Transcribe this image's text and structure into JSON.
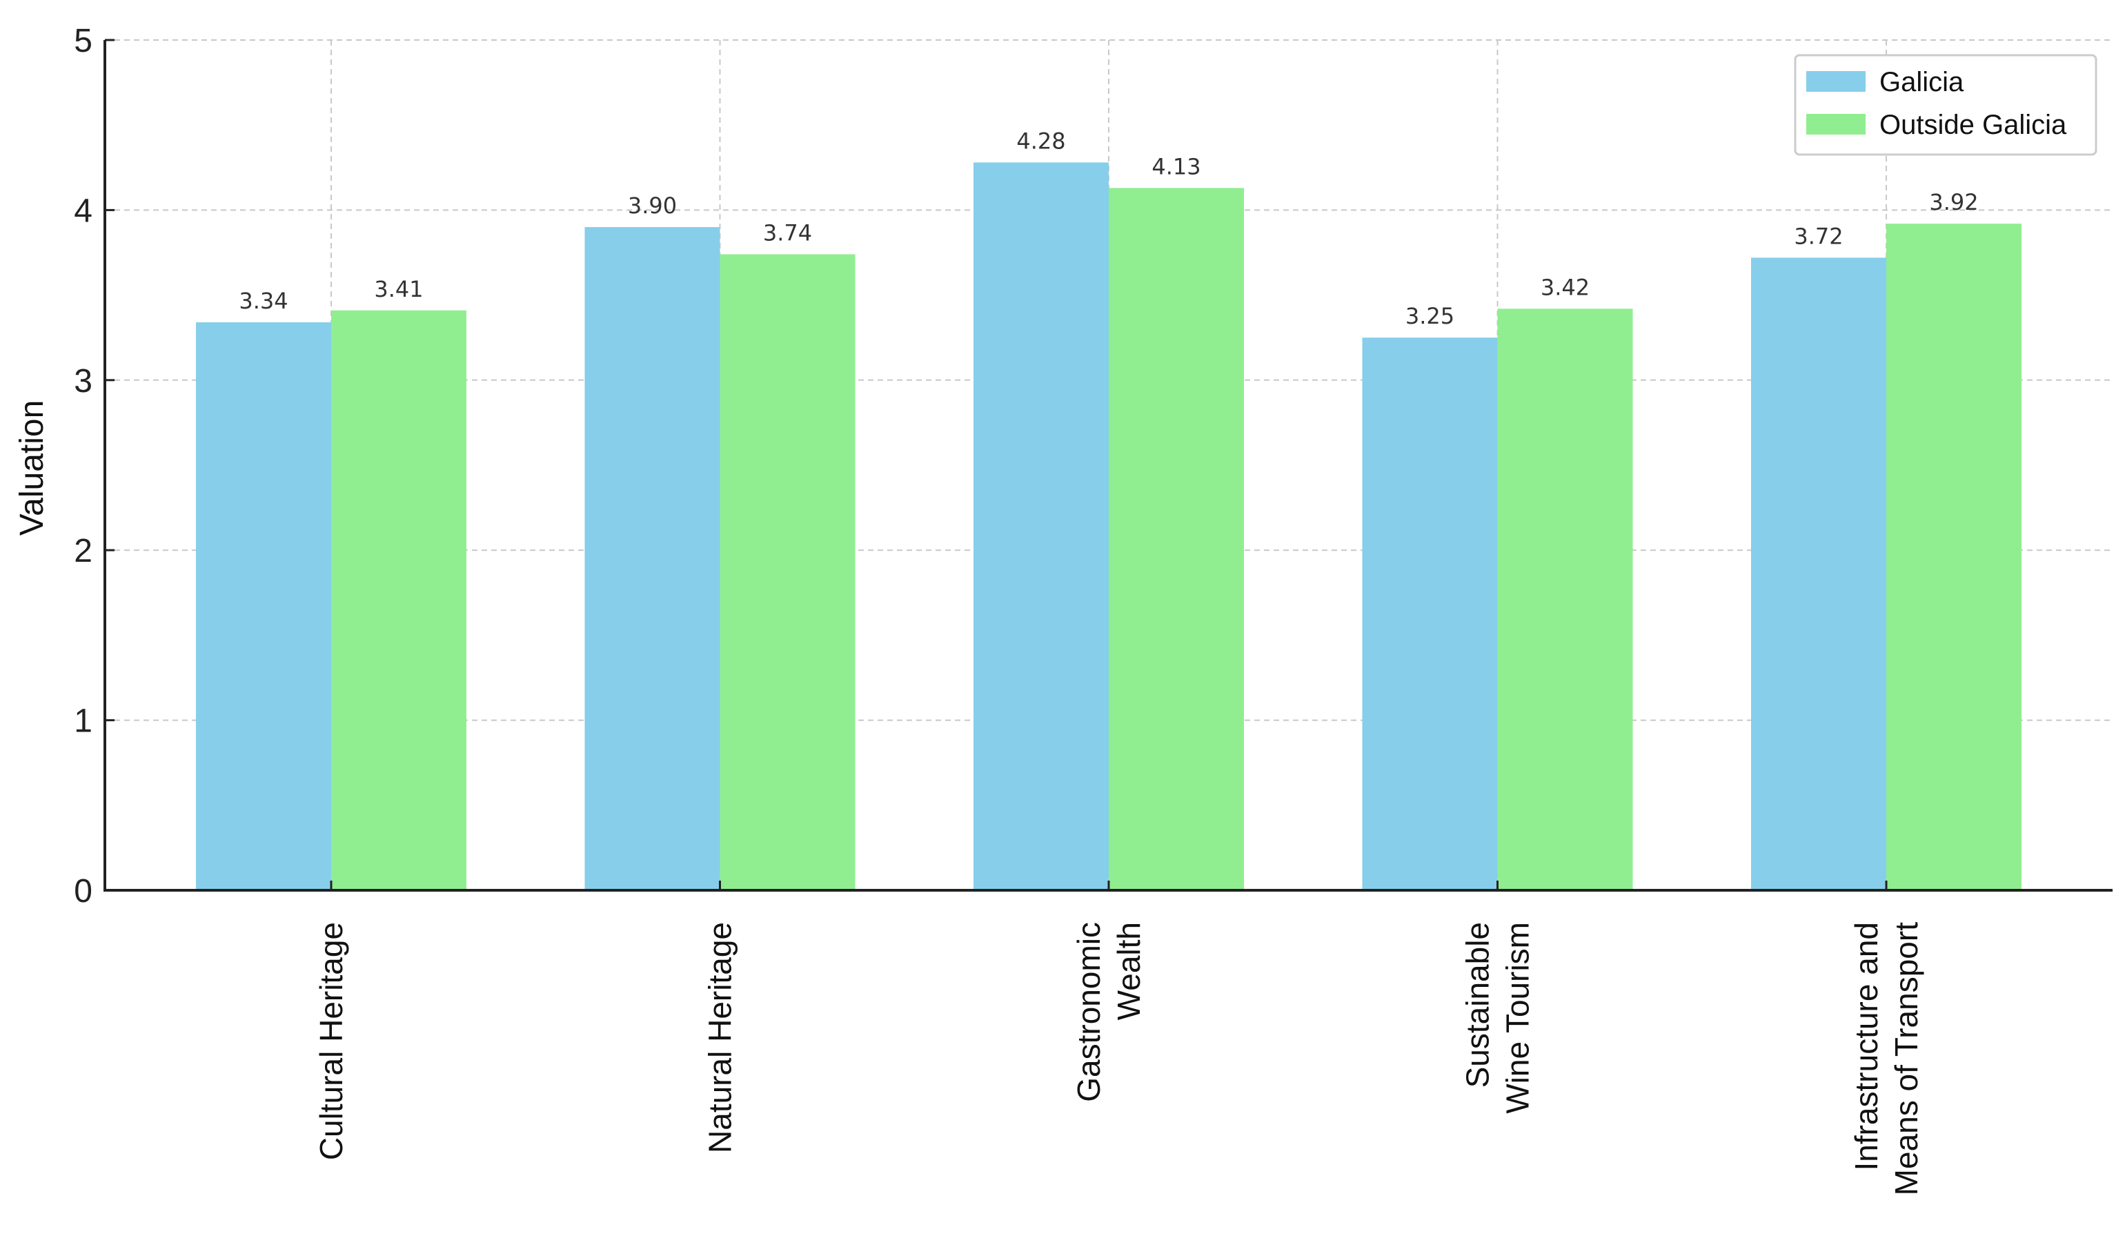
{
  "chart_data": {
    "type": "bar",
    "title": "",
    "xlabel": "",
    "ylabel": "Valuation",
    "ylim": [
      0,
      5
    ],
    "yticks": [
      0,
      1,
      2,
      3,
      4,
      5
    ],
    "grid": true,
    "legend_position": "top-right",
    "categories": [
      [
        "Cultural Heritage"
      ],
      [
        "Natural Heritage"
      ],
      [
        "Gastronomic",
        "Wealth"
      ],
      [
        "Sustainable",
        "Wine Tourism"
      ],
      [
        "Infrastructure and",
        "Means of Transport"
      ]
    ],
    "series": [
      {
        "name": "Galicia",
        "color": "#87ceeb",
        "values": [
          3.34,
          3.9,
          4.28,
          3.25,
          3.72
        ],
        "labels": [
          "3.34",
          "3.90",
          "4.28",
          "3.25",
          "3.72"
        ]
      },
      {
        "name": "Outside Galicia",
        "color": "#90ee90",
        "values": [
          3.41,
          3.74,
          4.13,
          3.42,
          3.92
        ],
        "labels": [
          "3.41",
          "3.74",
          "4.13",
          "3.42",
          "3.92"
        ]
      }
    ]
  }
}
